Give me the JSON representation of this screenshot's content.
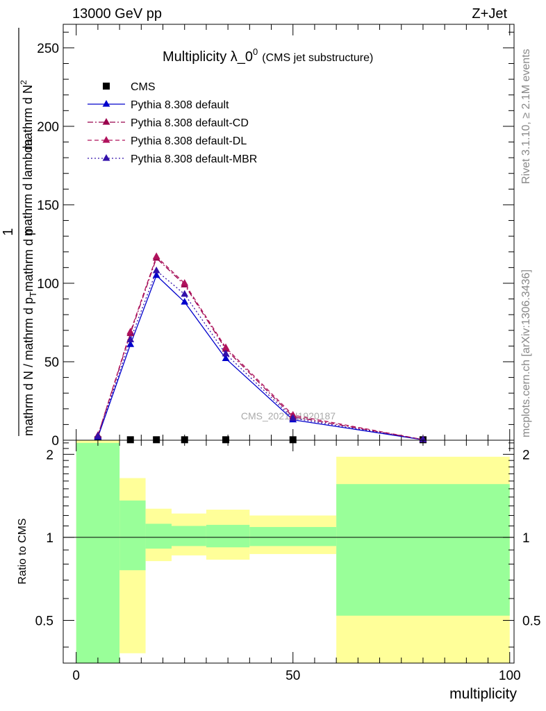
{
  "header": {
    "left": "13000 GeV pp",
    "right": "Z+Jet"
  },
  "side_labels": {
    "rivet": "Rivet 3.1.10, ≥ 2.1M events",
    "mcplots": "mcplots.cern.ch [arXiv:1306.3436]"
  },
  "watermark": "CMS_2021_I1920187",
  "colors": {
    "cms": "#000000",
    "default": "#0000cc",
    "cd": "#99004c",
    "dl": "#b0125c",
    "mbr": "#3311aa",
    "band_inner": "#99ff99",
    "band_outer": "#ffff99"
  },
  "chart_data": [
    {
      "type": "line",
      "title": "Multiplicity λ_0",
      "title_sup": "0",
      "title_suffix": "(CMS jet substructure)",
      "ylabel_numerator": "1",
      "ylabel_denominator_text": "mathrm d N / mathrm d p",
      "ylabel_sub_T": "T",
      "ylabel_middle": "mathrm d N",
      "ylabel_middle_sup": "2",
      "ylabel_tail": "mathrm d p",
      "ylabel_tail2": "mathrm d lambda",
      "xlim": [
        -3,
        101
      ],
      "ylim": [
        0,
        265
      ],
      "yticks": [
        0,
        50,
        100,
        150,
        200,
        250
      ],
      "ytick_labels": [
        "0",
        "50",
        "100",
        "150",
        "200",
        "250"
      ],
      "x": [
        5,
        12.5,
        18.5,
        25,
        34.5,
        50,
        80
      ],
      "series": [
        {
          "name": "CMS",
          "style": "square",
          "values": [
            0.3,
            0.3,
            0.3,
            0.3,
            0.3,
            0.3,
            0.3
          ]
        },
        {
          "name": "Pythia 8.308 default",
          "style": "solid",
          "values": [
            2,
            61,
            105,
            88,
            52,
            13,
            0.3
          ]
        },
        {
          "name": "Pythia 8.308 default-CD",
          "style": "dashdot",
          "values": [
            3,
            68,
            116,
            99,
            58,
            15,
            0.4
          ]
        },
        {
          "name": "Pythia 8.308 default-DL",
          "style": "dashed",
          "values": [
            3,
            69,
            117,
            100,
            59,
            16,
            0.4
          ]
        },
        {
          "name": "Pythia 8.308 default-MBR",
          "style": "dotted",
          "values": [
            2.5,
            64,
            108,
            93,
            55,
            14,
            0.35
          ]
        }
      ]
    },
    {
      "type": "area",
      "ylabel": "Ratio to CMS",
      "xlabel": "multiplicity",
      "xlim": [
        -3,
        101
      ],
      "ylim": [
        0.35,
        2.25
      ],
      "xticks": [
        0,
        50,
        100
      ],
      "xtick_labels": [
        "0",
        "50",
        "100"
      ],
      "yticks": [
        0.5,
        1,
        2
      ],
      "ytick_labels": [
        "0.5",
        "1",
        "2"
      ],
      "bins": [
        {
          "x0": 0,
          "x1": 10,
          "inner_lo": 0.35,
          "inner_hi": 2.2,
          "outer_lo": 0.35,
          "outer_hi": 2.25
        },
        {
          "x0": 10,
          "x1": 16,
          "inner_lo": 0.76,
          "inner_hi": 1.36,
          "outer_lo": 0.38,
          "outer_hi": 1.64
        },
        {
          "x0": 16,
          "x1": 22,
          "inner_lo": 0.91,
          "inner_hi": 1.12,
          "outer_lo": 0.82,
          "outer_hi": 1.27
        },
        {
          "x0": 22,
          "x1": 30,
          "inner_lo": 0.93,
          "inner_hi": 1.1,
          "outer_lo": 0.86,
          "outer_hi": 1.22
        },
        {
          "x0": 30,
          "x1": 40,
          "inner_lo": 0.92,
          "inner_hi": 1.11,
          "outer_lo": 0.83,
          "outer_hi": 1.26
        },
        {
          "x0": 40,
          "x1": 60,
          "inner_lo": 0.93,
          "inner_hi": 1.09,
          "outer_lo": 0.87,
          "outer_hi": 1.2
        },
        {
          "x0": 60,
          "x1": 100,
          "inner_lo": 0.52,
          "inner_hi": 1.56,
          "outer_lo": 0.35,
          "outer_hi": 1.96
        }
      ],
      "reference": 1
    }
  ]
}
